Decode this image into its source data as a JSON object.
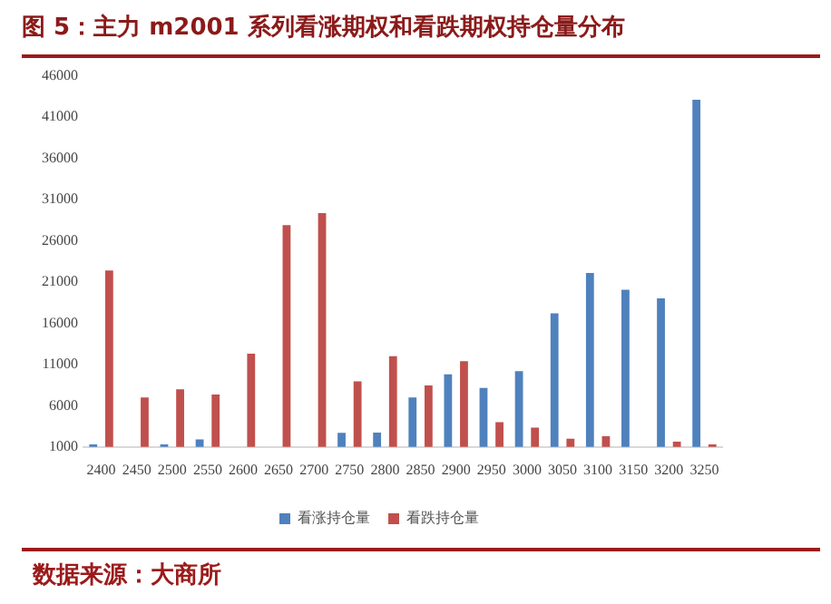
{
  "chart_data": {
    "type": "bar",
    "title": "图 5：主力 m2001 系列看涨期权和看跌期权持仓量分布",
    "categories": [
      "2400",
      "2450",
      "2500",
      "2550",
      "2600",
      "2650",
      "2700",
      "2750",
      "2800",
      "2850",
      "2900",
      "2950",
      "3000",
      "3050",
      "3100",
      "3150",
      "3200",
      "3250"
    ],
    "series": [
      {
        "name": "看涨持仓量",
        "color": "#4f81bd",
        "values": [
          1300,
          null,
          1300,
          1900,
          null,
          null,
          null,
          2700,
          2750,
          7000,
          9800,
          8150,
          10200,
          17200,
          22100,
          20050,
          19000,
          43100
        ]
      },
      {
        "name": "看跌持仓量",
        "color": "#c0504d",
        "values": [
          22400,
          7000,
          8000,
          7350,
          12300,
          27900,
          29350,
          8960,
          12000,
          8450,
          11400,
          4000,
          3350,
          2000,
          2300,
          null,
          1650,
          1300
        ]
      }
    ],
    "ylim": [
      1000,
      46000
    ],
    "yticks": [
      1000,
      6000,
      11000,
      16000,
      21000,
      26000,
      31000,
      36000,
      41000,
      46000
    ],
    "grid": false,
    "legend": "bottom",
    "annotations": [
      "数据来源：大商所"
    ]
  }
}
